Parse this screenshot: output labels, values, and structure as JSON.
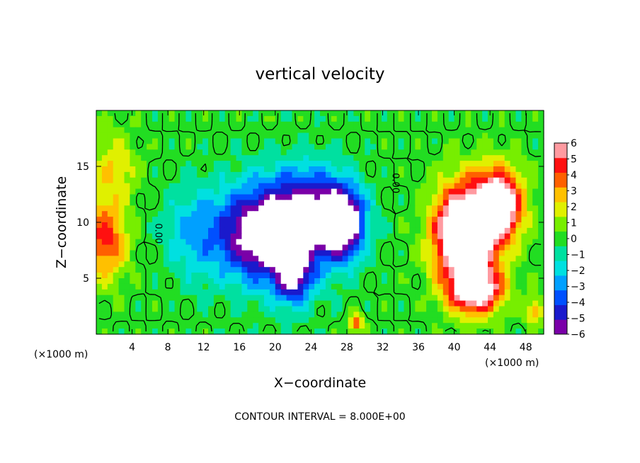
{
  "chart_data": {
    "type": "heatmap",
    "title": "vertical velocity",
    "xlabel": "X−coordinate",
    "ylabel": "Z−coordinate",
    "x_unit_label": "(×1000 m)",
    "z_unit_label": "(×1000 m)",
    "footer": "CONTOUR INTERVAL = 8.000E+00",
    "xlim": [
      0,
      50
    ],
    "ylim": [
      0,
      20
    ],
    "x_ticks": [
      4,
      8,
      12,
      16,
      20,
      24,
      28,
      32,
      36,
      40,
      44,
      48
    ],
    "x_tick_labels": [
      "4",
      "8",
      "12",
      "16",
      "20",
      "24",
      "28",
      "32",
      "36",
      "40",
      "44",
      "48"
    ],
    "y_ticks": [
      5,
      10,
      15
    ],
    "y_tick_labels": [
      "5",
      "10",
      "15"
    ],
    "colorbar": {
      "min": -6,
      "max": 6,
      "labels": [
        "6",
        "5",
        "4",
        "3",
        "2",
        "1",
        "0",
        "−1",
        "−2",
        "−3",
        "−4",
        "−5",
        "−6"
      ],
      "colormap": [
        "#7a00a8",
        "#1a1acc",
        "#0050ff",
        "#00a0ff",
        "#00e0e0",
        "#00e0a0",
        "#22dd22",
        "#77ee00",
        "#e0f000",
        "#ffc000",
        "#ff6000",
        "#ff1010",
        "#ff9aa0"
      ]
    },
    "contour_labels": [
      {
        "text": "0.00",
        "x": 7.0,
        "z": 9.0
      },
      {
        "text": "0.00",
        "x": 33.5,
        "z": 13.5
      }
    ],
    "field_features": [
      {
        "kind": "downdraft",
        "x": 19.5,
        "z": 9.0,
        "sx": 6.0,
        "sz": 4.2,
        "amp": -8.5
      },
      {
        "kind": "downdraft",
        "x": 22.0,
        "z": 5.0,
        "sx": 2.0,
        "sz": 2.5,
        "amp": -4.5
      },
      {
        "kind": "downdraft",
        "x": 27.5,
        "z": 10.0,
        "sx": 2.4,
        "sz": 3.0,
        "amp": -8.0
      },
      {
        "kind": "downdraft",
        "x": 24.0,
        "z": 12.0,
        "sx": 4.0,
        "sz": 3.5,
        "amp": -3.0
      },
      {
        "kind": "downdraft",
        "x": 10.5,
        "z": 9.0,
        "sx": 3.0,
        "sz": 4.0,
        "amp": -1.8
      },
      {
        "kind": "updraft",
        "x": 41.0,
        "z": 9.0,
        "sx": 3.2,
        "sz": 4.2,
        "amp": 10.0
      },
      {
        "kind": "updraft",
        "x": 45.0,
        "z": 11.5,
        "sx": 2.6,
        "sz": 3.2,
        "amp": 8.5
      },
      {
        "kind": "updraft",
        "x": 42.5,
        "z": 4.0,
        "sx": 3.0,
        "sz": 2.2,
        "amp": 7.0
      },
      {
        "kind": "updraft",
        "x": 1.0,
        "z": 8.5,
        "sx": 2.4,
        "sz": 3.5,
        "amp": 4.5
      },
      {
        "kind": "updraft",
        "x": 2.0,
        "z": 15.0,
        "sx": 2.5,
        "sz": 3.0,
        "amp": 2.2
      },
      {
        "kind": "updraft",
        "x": 29.0,
        "z": 1.0,
        "sx": 0.8,
        "sz": 0.8,
        "amp": 4.0
      },
      {
        "kind": "updraft",
        "x": 49.0,
        "z": 2.0,
        "sx": 1.0,
        "sz": 1.2,
        "amp": 3.0
      }
    ]
  }
}
